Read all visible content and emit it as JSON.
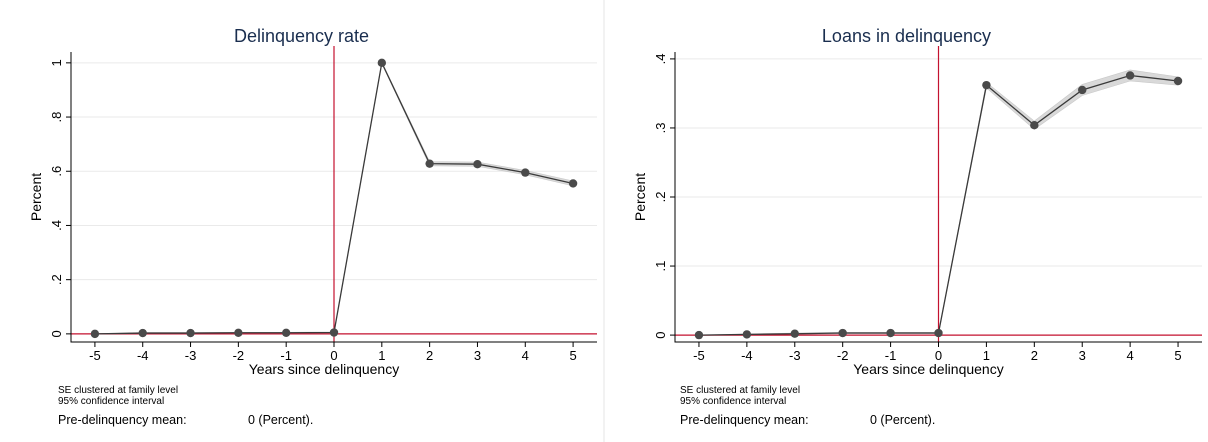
{
  "colors": {
    "series": "#3a3a3a",
    "ci_band": "#d9d9d9",
    "reference_line": "#c4122f",
    "title": "#1a2e4f",
    "grid": "#eaeaea"
  },
  "panels": [
    {
      "title": "Delinquency rate",
      "note_line1": "SE clustered at family level",
      "note_line2": "95% confidence interval",
      "premean_label": "Pre-delinquency mean:",
      "premean_value": "0 (Percent).",
      "chart_data": {
        "type": "line",
        "title": "Delinquency rate",
        "xlabel": "Years since delinquency",
        "ylabel": "Percent",
        "xlim": [
          -5.5,
          5.5
        ],
        "ylim": [
          -0.03,
          1.04
        ],
        "xticks": [
          -5,
          -4,
          -3,
          -2,
          -1,
          0,
          1,
          2,
          3,
          4,
          5
        ],
        "xtick_labels": [
          "-5",
          "-4",
          "-3",
          "-2",
          "-1",
          "0",
          "1",
          "2",
          "3",
          "4",
          "5"
        ],
        "yticks": [
          0,
          0.2,
          0.4,
          0.6,
          0.8,
          1
        ],
        "ytick_labels": [
          "0",
          ".2",
          ".4",
          ".6",
          ".8",
          "1"
        ],
        "grid": true,
        "reference_lines": {
          "x": 0,
          "y": 0
        },
        "x": [
          -5,
          -4,
          -3,
          -2,
          -1,
          0,
          1,
          2,
          3,
          4,
          5
        ],
        "y": [
          0,
          0.003,
          0.003,
          0.004,
          0.004,
          0.005,
          1.0,
          0.628,
          0.626,
          0.595,
          0.555
        ],
        "ci_low": [
          0,
          0.001,
          0.001,
          0.002,
          0.002,
          0.003,
          0.997,
          0.62,
          0.618,
          0.587,
          0.546
        ],
        "ci_high": [
          0,
          0.005,
          0.005,
          0.006,
          0.006,
          0.007,
          1.003,
          0.636,
          0.634,
          0.603,
          0.564
        ]
      }
    },
    {
      "title": "Loans in delinquency",
      "note_line1": "SE clustered at family level",
      "note_line2": "95% confidence interval",
      "premean_label": "Pre-delinquency mean:",
      "premean_value": "0 (Percent).",
      "chart_data": {
        "type": "line",
        "title": "Loans in delinquency",
        "xlabel": "Years since delinquency",
        "ylabel": "Percent",
        "xlim": [
          -5.5,
          5.5
        ],
        "ylim": [
          -0.01,
          0.41
        ],
        "xticks": [
          -5,
          -4,
          -3,
          -2,
          -1,
          0,
          1,
          2,
          3,
          4,
          5
        ],
        "xtick_labels": [
          "-5",
          "-4",
          "-3",
          "-2",
          "-1",
          "0",
          "1",
          "2",
          "3",
          "4",
          "5"
        ],
        "yticks": [
          0,
          0.1,
          0.2,
          0.3,
          0.4
        ],
        "ytick_labels": [
          "0",
          ".1",
          ".2",
          ".3",
          ".4"
        ],
        "grid": true,
        "reference_lines": {
          "x": 0,
          "y": 0
        },
        "x": [
          -5,
          -4,
          -3,
          -2,
          -1,
          0,
          1,
          2,
          3,
          4,
          5
        ],
        "y": [
          0,
          0.001,
          0.002,
          0.003,
          0.003,
          0.003,
          0.362,
          0.304,
          0.355,
          0.376,
          0.368
        ],
        "ci_low": [
          0,
          0.0005,
          0.001,
          0.002,
          0.002,
          0.002,
          0.358,
          0.298,
          0.347,
          0.368,
          0.362
        ],
        "ci_high": [
          0,
          0.0015,
          0.003,
          0.004,
          0.004,
          0.004,
          0.366,
          0.31,
          0.363,
          0.384,
          0.374
        ]
      }
    }
  ]
}
